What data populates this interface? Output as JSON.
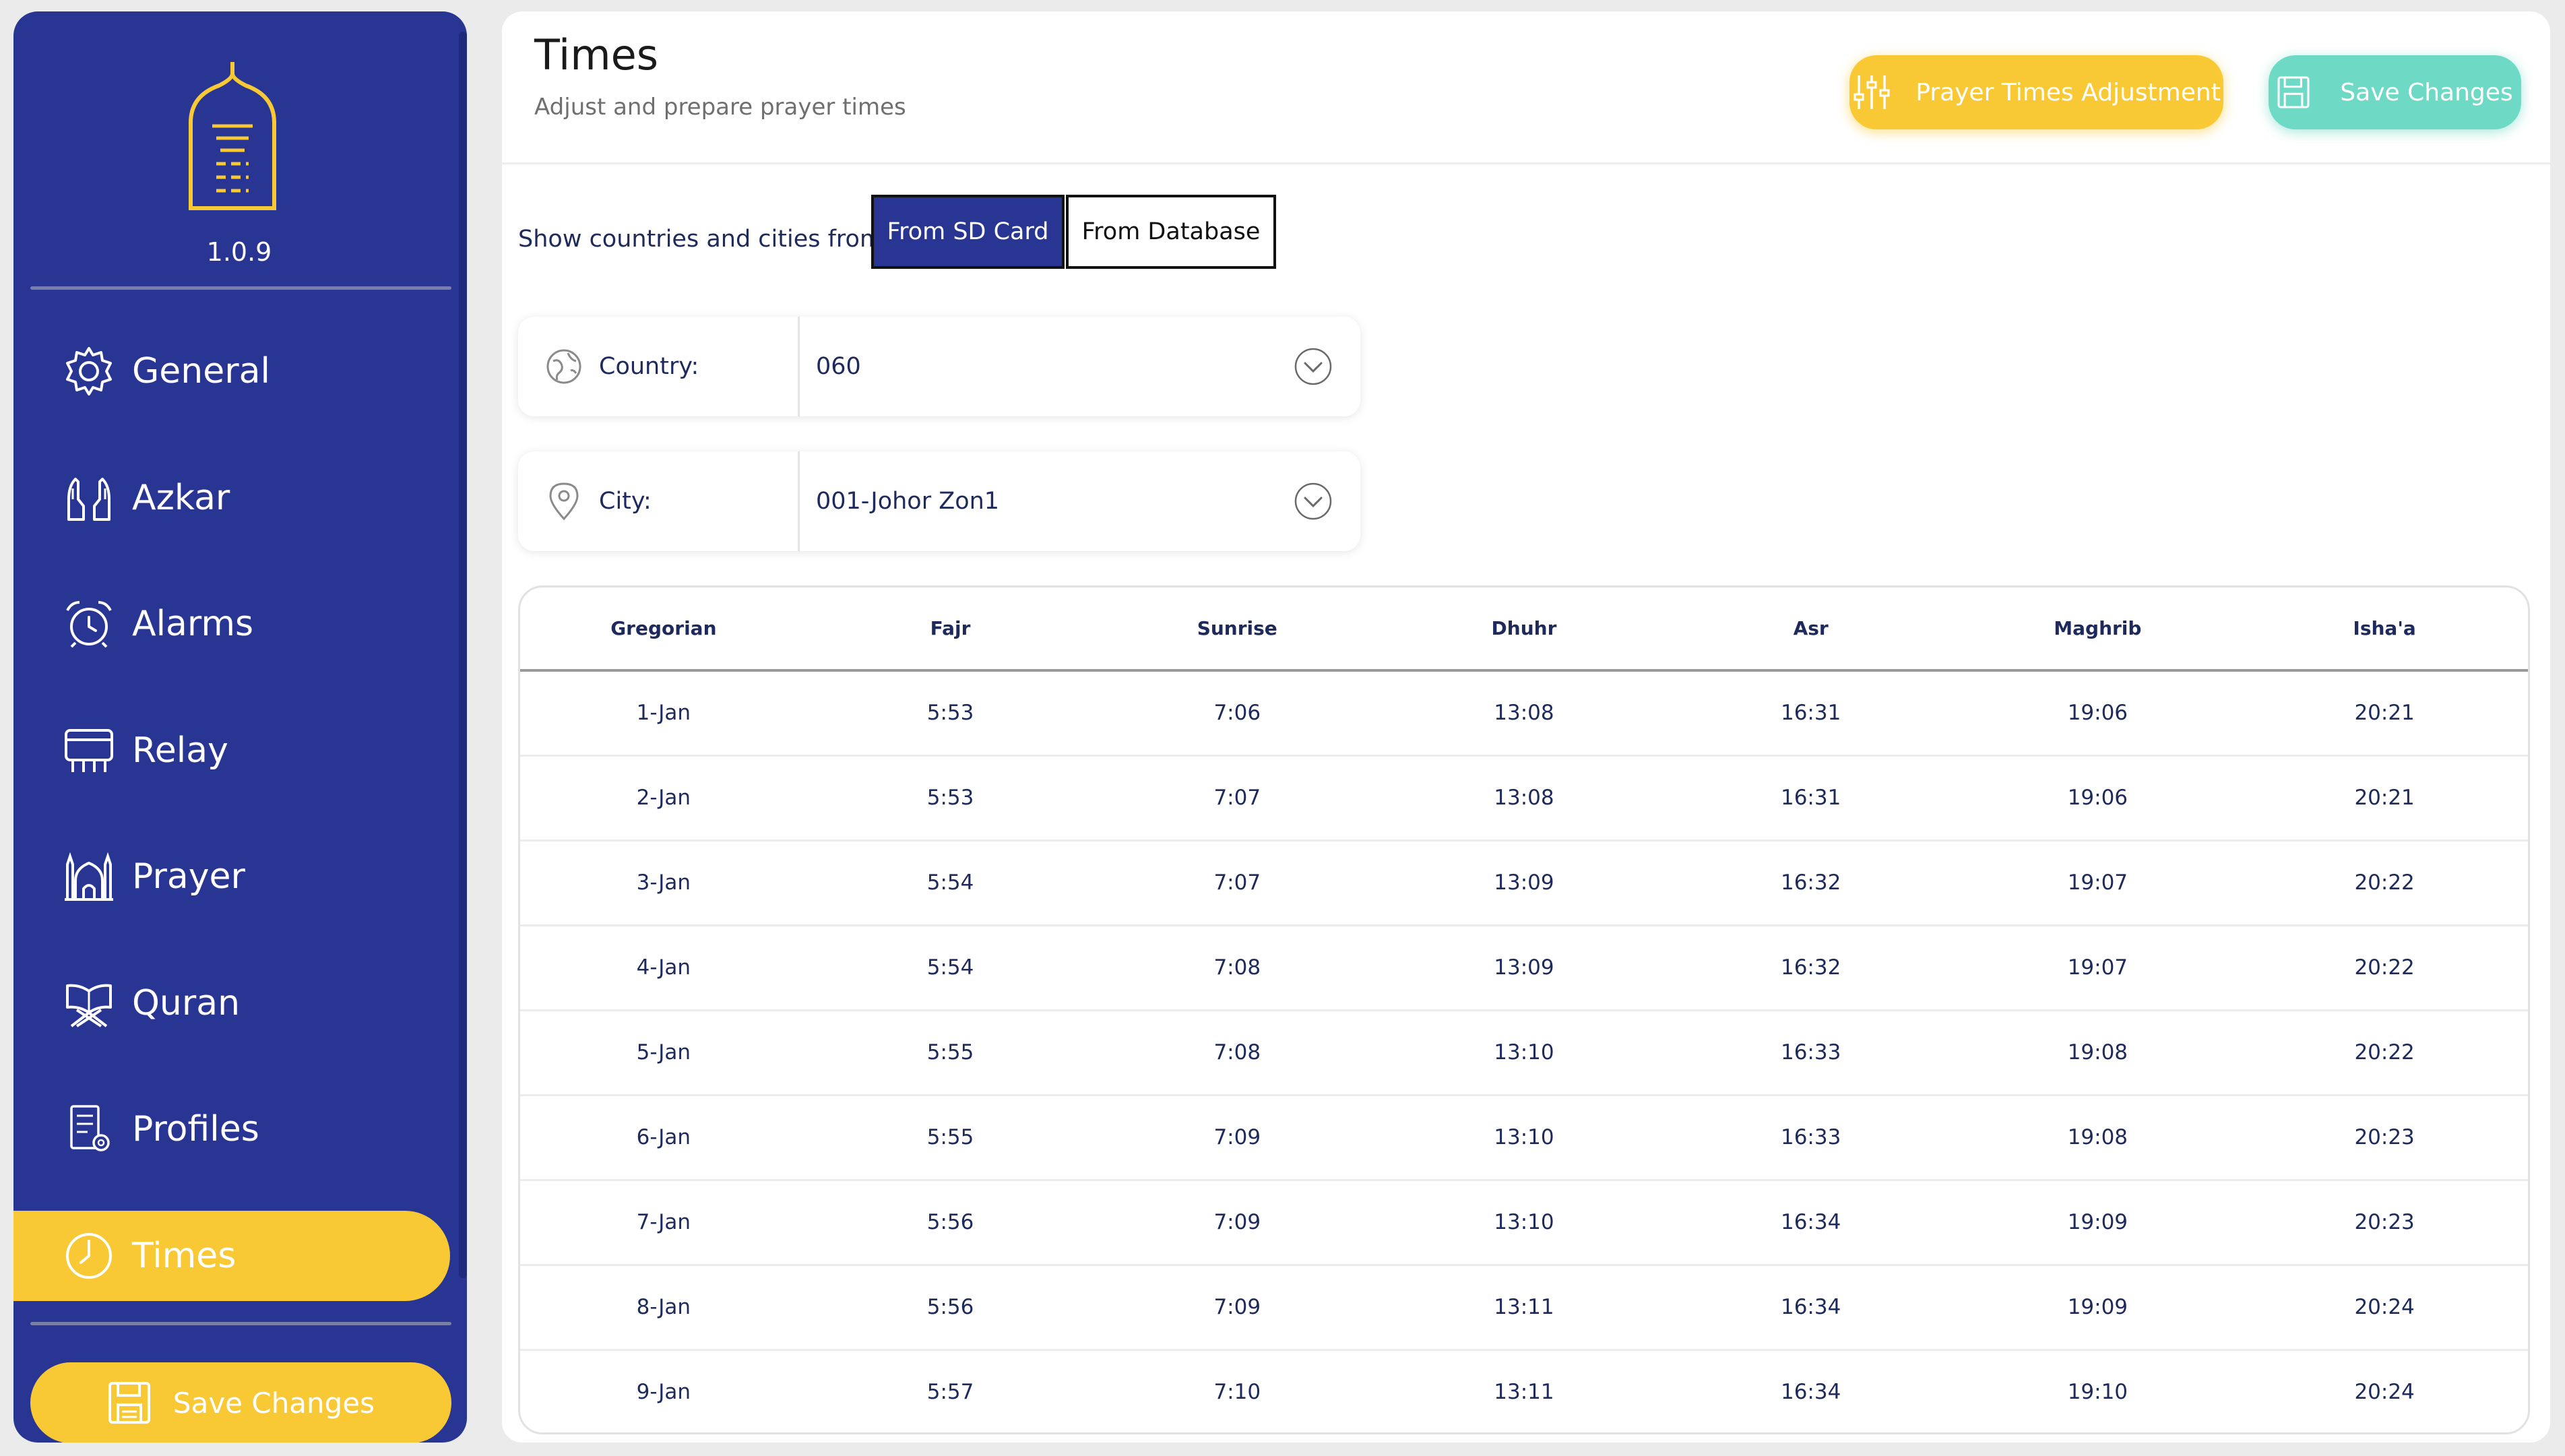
{
  "sidebar": {
    "version": "1.0.9",
    "items": [
      {
        "label": "General",
        "icon": "gear-icon"
      },
      {
        "label": "Azkar",
        "icon": "praying-hands-icon"
      },
      {
        "label": "Alarms",
        "icon": "alarm-clock-icon"
      },
      {
        "label": "Relay",
        "icon": "relay-icon"
      },
      {
        "label": "Prayer",
        "icon": "mosque-icon"
      },
      {
        "label": "Quran",
        "icon": "quran-icon"
      },
      {
        "label": "Profiles",
        "icon": "profiles-icon"
      },
      {
        "label": "Times",
        "icon": "clock-icon",
        "active": true
      }
    ],
    "save_label": "Save Changes"
  },
  "header": {
    "title": "Times",
    "subtitle": "Adjust and prepare prayer times",
    "adjust_label": "Prayer Times Adjustment",
    "save_label": "Save Changes"
  },
  "source": {
    "label": "Show countries and cities from:",
    "options": [
      "From SD Card",
      "From Database"
    ],
    "selected": "From SD Card"
  },
  "country": {
    "label": "Country:",
    "value": "060"
  },
  "city": {
    "label": "City:",
    "value": "001-Johor Zon1"
  },
  "table": {
    "columns": [
      "Gregorian",
      "Fajr",
      "Sunrise",
      "Dhuhr",
      "Asr",
      "Maghrib",
      "Isha'a"
    ],
    "rows": [
      [
        "1-Jan",
        "5:53",
        "7:06",
        "13:08",
        "16:31",
        "19:06",
        "20:21"
      ],
      [
        "2-Jan",
        "5:53",
        "7:07",
        "13:08",
        "16:31",
        "19:06",
        "20:21"
      ],
      [
        "3-Jan",
        "5:54",
        "7:07",
        "13:09",
        "16:32",
        "19:07",
        "20:22"
      ],
      [
        "4-Jan",
        "5:54",
        "7:08",
        "13:09",
        "16:32",
        "19:07",
        "20:22"
      ],
      [
        "5-Jan",
        "5:55",
        "7:08",
        "13:10",
        "16:33",
        "19:08",
        "20:22"
      ],
      [
        "6-Jan",
        "5:55",
        "7:09",
        "13:10",
        "16:33",
        "19:08",
        "20:23"
      ],
      [
        "7-Jan",
        "5:56",
        "7:09",
        "13:10",
        "16:34",
        "19:09",
        "20:23"
      ],
      [
        "8-Jan",
        "5:56",
        "7:09",
        "13:11",
        "16:34",
        "19:09",
        "20:24"
      ],
      [
        "9-Jan",
        "5:57",
        "7:10",
        "13:11",
        "16:34",
        "19:10",
        "20:24"
      ]
    ]
  },
  "colors": {
    "sidebar_bg": "#283593",
    "accent_yellow": "#f9c935",
    "accent_teal": "#6ed9c5",
    "text_dark_blue": "#1e2a5c"
  }
}
